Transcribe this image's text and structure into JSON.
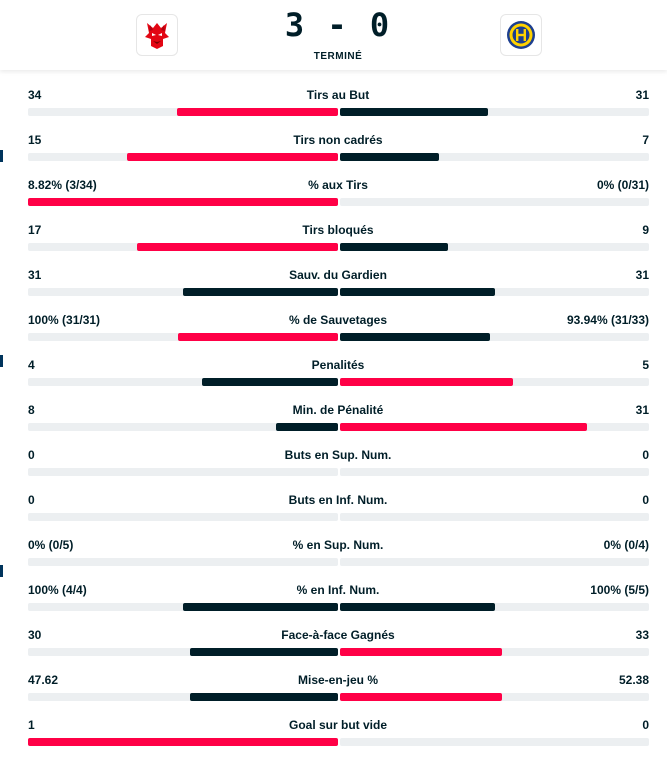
{
  "match": {
    "score": "3 - 0",
    "status": "TERMINÉ",
    "home_logo_icon": "lion-head-icon",
    "away_logo_icon": "hc-lugano-crest-icon"
  },
  "colors": {
    "accent": "#ff0046",
    "dark": "#001e28",
    "track": "#eceff1"
  },
  "stats": [
    {
      "label": "Tirs au But",
      "home": "34",
      "away": "31",
      "home_fill": 0.52,
      "away_fill": 0.48,
      "home_color": "red",
      "away_color": "dark"
    },
    {
      "label": "Tirs non cadrés",
      "home": "15",
      "away": "7",
      "home_fill": 0.68,
      "away_fill": 0.32,
      "home_color": "red",
      "away_color": "dark"
    },
    {
      "label": "% aux Tirs",
      "home": "8.82% (3/34)",
      "away": "0% (0/31)",
      "home_fill": 1.0,
      "away_fill": 0.0,
      "home_color": "red",
      "away_color": "dark"
    },
    {
      "label": "Tirs bloqués",
      "home": "17",
      "away": "9",
      "home_fill": 0.65,
      "away_fill": 0.35,
      "home_color": "red",
      "away_color": "dark"
    },
    {
      "label": "Sauv. du Gardien",
      "home": "31",
      "away": "31",
      "home_fill": 0.5,
      "away_fill": 0.5,
      "home_color": "dark",
      "away_color": "dark"
    },
    {
      "label": "% de Sauvetages",
      "home": "100% (31/31)",
      "away": "93.94% (31/33)",
      "home_fill": 0.515,
      "away_fill": 0.485,
      "home_color": "red",
      "away_color": "dark"
    },
    {
      "label": "Penalités",
      "home": "4",
      "away": "5",
      "home_fill": 0.44,
      "away_fill": 0.56,
      "home_color": "dark",
      "away_color": "red"
    },
    {
      "label": "Min. de Pénalité",
      "home": "8",
      "away": "31",
      "home_fill": 0.2,
      "away_fill": 0.8,
      "home_color": "dark",
      "away_color": "red"
    },
    {
      "label": "Buts en Sup. Num.",
      "home": "0",
      "away": "0",
      "home_fill": 0.0,
      "away_fill": 0.0,
      "home_color": "dark",
      "away_color": "dark"
    },
    {
      "label": "Buts en Inf. Num.",
      "home": "0",
      "away": "0",
      "home_fill": 0.0,
      "away_fill": 0.0,
      "home_color": "dark",
      "away_color": "dark"
    },
    {
      "label": "% en Sup. Num.",
      "home": "0% (0/5)",
      "away": "0% (0/4)",
      "home_fill": 0.0,
      "away_fill": 0.0,
      "home_color": "dark",
      "away_color": "dark"
    },
    {
      "label": "% en Inf. Num.",
      "home": "100% (4/4)",
      "away": "100% (5/5)",
      "home_fill": 0.5,
      "away_fill": 0.5,
      "home_color": "dark",
      "away_color": "dark"
    },
    {
      "label": "Face-à-face Gagnés",
      "home": "30",
      "away": "33",
      "home_fill": 0.476,
      "away_fill": 0.524,
      "home_color": "dark",
      "away_color": "red"
    },
    {
      "label": "Mise-en-jeu %",
      "home": "47.62",
      "away": "52.38",
      "home_fill": 0.4762,
      "away_fill": 0.5238,
      "home_color": "dark",
      "away_color": "red"
    },
    {
      "label": "Goal sur but vide",
      "home": "1",
      "away": "0",
      "home_fill": 1.0,
      "away_fill": 0.0,
      "home_color": "red",
      "away_color": "dark"
    }
  ]
}
